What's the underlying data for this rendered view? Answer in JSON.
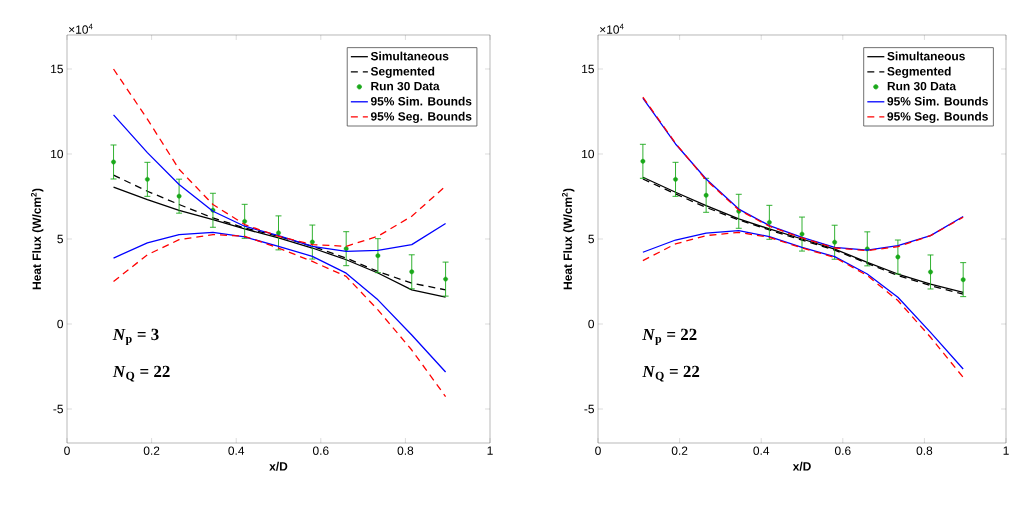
{
  "chart_data": [
    {
      "type": "line",
      "xlabel": "x/D",
      "ylabel": "Heat Flux (W/cm$^{2}$)",
      "xlim": [
        0,
        1
      ],
      "ylim": [
        -7,
        17
      ],
      "xticks": [
        0,
        0.2,
        0.4,
        0.6,
        0.8,
        1
      ],
      "yticks": [
        -5,
        0,
        5,
        10,
        15
      ],
      "legend": "top right",
      "x": [
        0.11,
        0.19,
        0.265,
        0.345,
        0.42,
        0.5,
        0.58,
        0.66,
        0.735,
        0.815,
        0.895
      ],
      "annotations": [
        "×10$^{4}$",
        "*N*$_{p}$ = 3",
        "*N*$_{Q}$ = 22"
      ],
      "series": [
        {
          "name": "Simultaneous",
          "type": "line",
          "color": "#000000",
          "line_style": "solid",
          "marker": "none",
          "values": [
            8.05,
            7.32,
            6.69,
            6.14,
            5.59,
            5.06,
            4.47,
            3.78,
            3.0,
            2.01,
            1.58
          ]
        },
        {
          "name": "Segmented",
          "type": "line",
          "color": "#000000",
          "line_style": "dashed",
          "marker": "none",
          "values": [
            8.76,
            7.81,
            7.03,
            6.24,
            5.65,
            5.16,
            4.57,
            3.88,
            3.09,
            2.4,
            2.01
          ]
        },
        {
          "name": "Run 30 Data",
          "type": "scatter",
          "color": "#1aa81a",
          "marker": "circle",
          "values": [
            9.53,
            8.51,
            7.52,
            6.69,
            6.04,
            5.36,
            4.82,
            4.43,
            4.02,
            3.07,
            2.64
          ],
          "errors": [
            1.0,
            1.0,
            1.0,
            1.0,
            1.0,
            1.0,
            1.0,
            1.0,
            1.0,
            1.0,
            1.0
          ]
        },
        {
          "name": "95% Sim. Bounds",
          "type": "line",
          "color": "#0000ff",
          "line_style": "solid",
          "marker": "none",
          "values": [
            12.3,
            10.08,
            8.21,
            6.63,
            5.75,
            5.2,
            4.57,
            4.27,
            4.33,
            4.67,
            5.91
          ]
        },
        {
          "type": "line",
          "color": "#0000ff",
          "line_style": "solid",
          "marker": "none",
          "values": [
            3.88,
            4.77,
            5.26,
            5.39,
            5.12,
            4.57,
            3.98,
            2.99,
            1.42,
            -0.65,
            -2.82
          ]
        },
        {
          "name": "95% Seg. Bounds",
          "type": "line",
          "color": "#ff0000",
          "line_style": "dashed",
          "marker": "none",
          "values": [
            15.0,
            12.05,
            9.1,
            7.03,
            5.85,
            5.16,
            4.67,
            4.57,
            5.16,
            6.34,
            8.11
          ]
        },
        {
          "type": "line",
          "color": "#ff0000",
          "line_style": "dashed",
          "marker": "none",
          "values": [
            2.5,
            4.07,
            4.96,
            5.26,
            5.16,
            4.47,
            3.68,
            2.8,
            0.83,
            -1.53,
            -4.27
          ]
        }
      ]
    },
    {
      "type": "line",
      "xlabel": "x/D",
      "ylabel": "Heat Flux (W/cm$^{2}$)",
      "xlim": [
        0,
        1
      ],
      "ylim": [
        -7,
        17
      ],
      "xticks": [
        0,
        0.2,
        0.4,
        0.6,
        0.8,
        1
      ],
      "yticks": [
        -5,
        0,
        5,
        10,
        15
      ],
      "legend": "top right",
      "x": [
        0.11,
        0.19,
        0.265,
        0.345,
        0.42,
        0.5,
        0.58,
        0.66,
        0.735,
        0.815,
        0.895
      ],
      "annotations": [
        "×10$^{4}$",
        "*N*$_{p}$ = 22",
        "*N*$_{Q}$ = 22"
      ],
      "series": [
        {
          "name": "Simultaneous",
          "type": "line",
          "color": "#000000",
          "line_style": "solid",
          "marker": "none",
          "values": [
            8.63,
            7.75,
            6.96,
            6.18,
            5.59,
            5.0,
            4.41,
            3.63,
            2.94,
            2.35,
            1.86
          ]
        },
        {
          "name": "Segmented",
          "type": "line",
          "color": "#000000",
          "line_style": "dashed",
          "marker": "none",
          "values": [
            8.53,
            7.65,
            6.86,
            6.12,
            5.53,
            4.94,
            4.35,
            3.57,
            2.85,
            2.26,
            1.76
          ]
        },
        {
          "name": "Run 30 Data",
          "type": "scatter",
          "color": "#1aa81a",
          "marker": "circle",
          "values": [
            9.57,
            8.51,
            7.57,
            6.63,
            5.98,
            5.29,
            4.81,
            4.42,
            3.94,
            3.06,
            2.61
          ],
          "errors": [
            1.0,
            1.0,
            1.0,
            1.0,
            1.0,
            1.0,
            1.0,
            1.0,
            1.0,
            1.0,
            1.0
          ]
        },
        {
          "name": "95% Sim. Bounds",
          "type": "line",
          "color": "#0000ff",
          "line_style": "solid",
          "marker": "none",
          "values": [
            13.28,
            10.59,
            8.53,
            6.76,
            5.79,
            5.1,
            4.51,
            4.35,
            4.61,
            5.2,
            6.32
          ]
        },
        {
          "type": "line",
          "color": "#0000ff",
          "line_style": "solid",
          "marker": "none",
          "values": [
            4.22,
            4.94,
            5.34,
            5.49,
            5.14,
            4.51,
            3.96,
            2.94,
            1.57,
            -0.49,
            -2.65
          ]
        },
        {
          "name": "95% Seg. Bounds",
          "type": "line",
          "color": "#ff0000",
          "line_style": "dashed",
          "marker": "none",
          "values": [
            13.34,
            10.63,
            8.47,
            6.71,
            5.75,
            5.06,
            4.47,
            4.32,
            4.55,
            5.2,
            6.28
          ]
        },
        {
          "type": "line",
          "color": "#ff0000",
          "line_style": "dashed",
          "marker": "none",
          "values": [
            3.73,
            4.71,
            5.2,
            5.39,
            5.1,
            4.47,
            3.92,
            2.85,
            1.38,
            -0.78,
            -3.14
          ]
        }
      ]
    }
  ]
}
